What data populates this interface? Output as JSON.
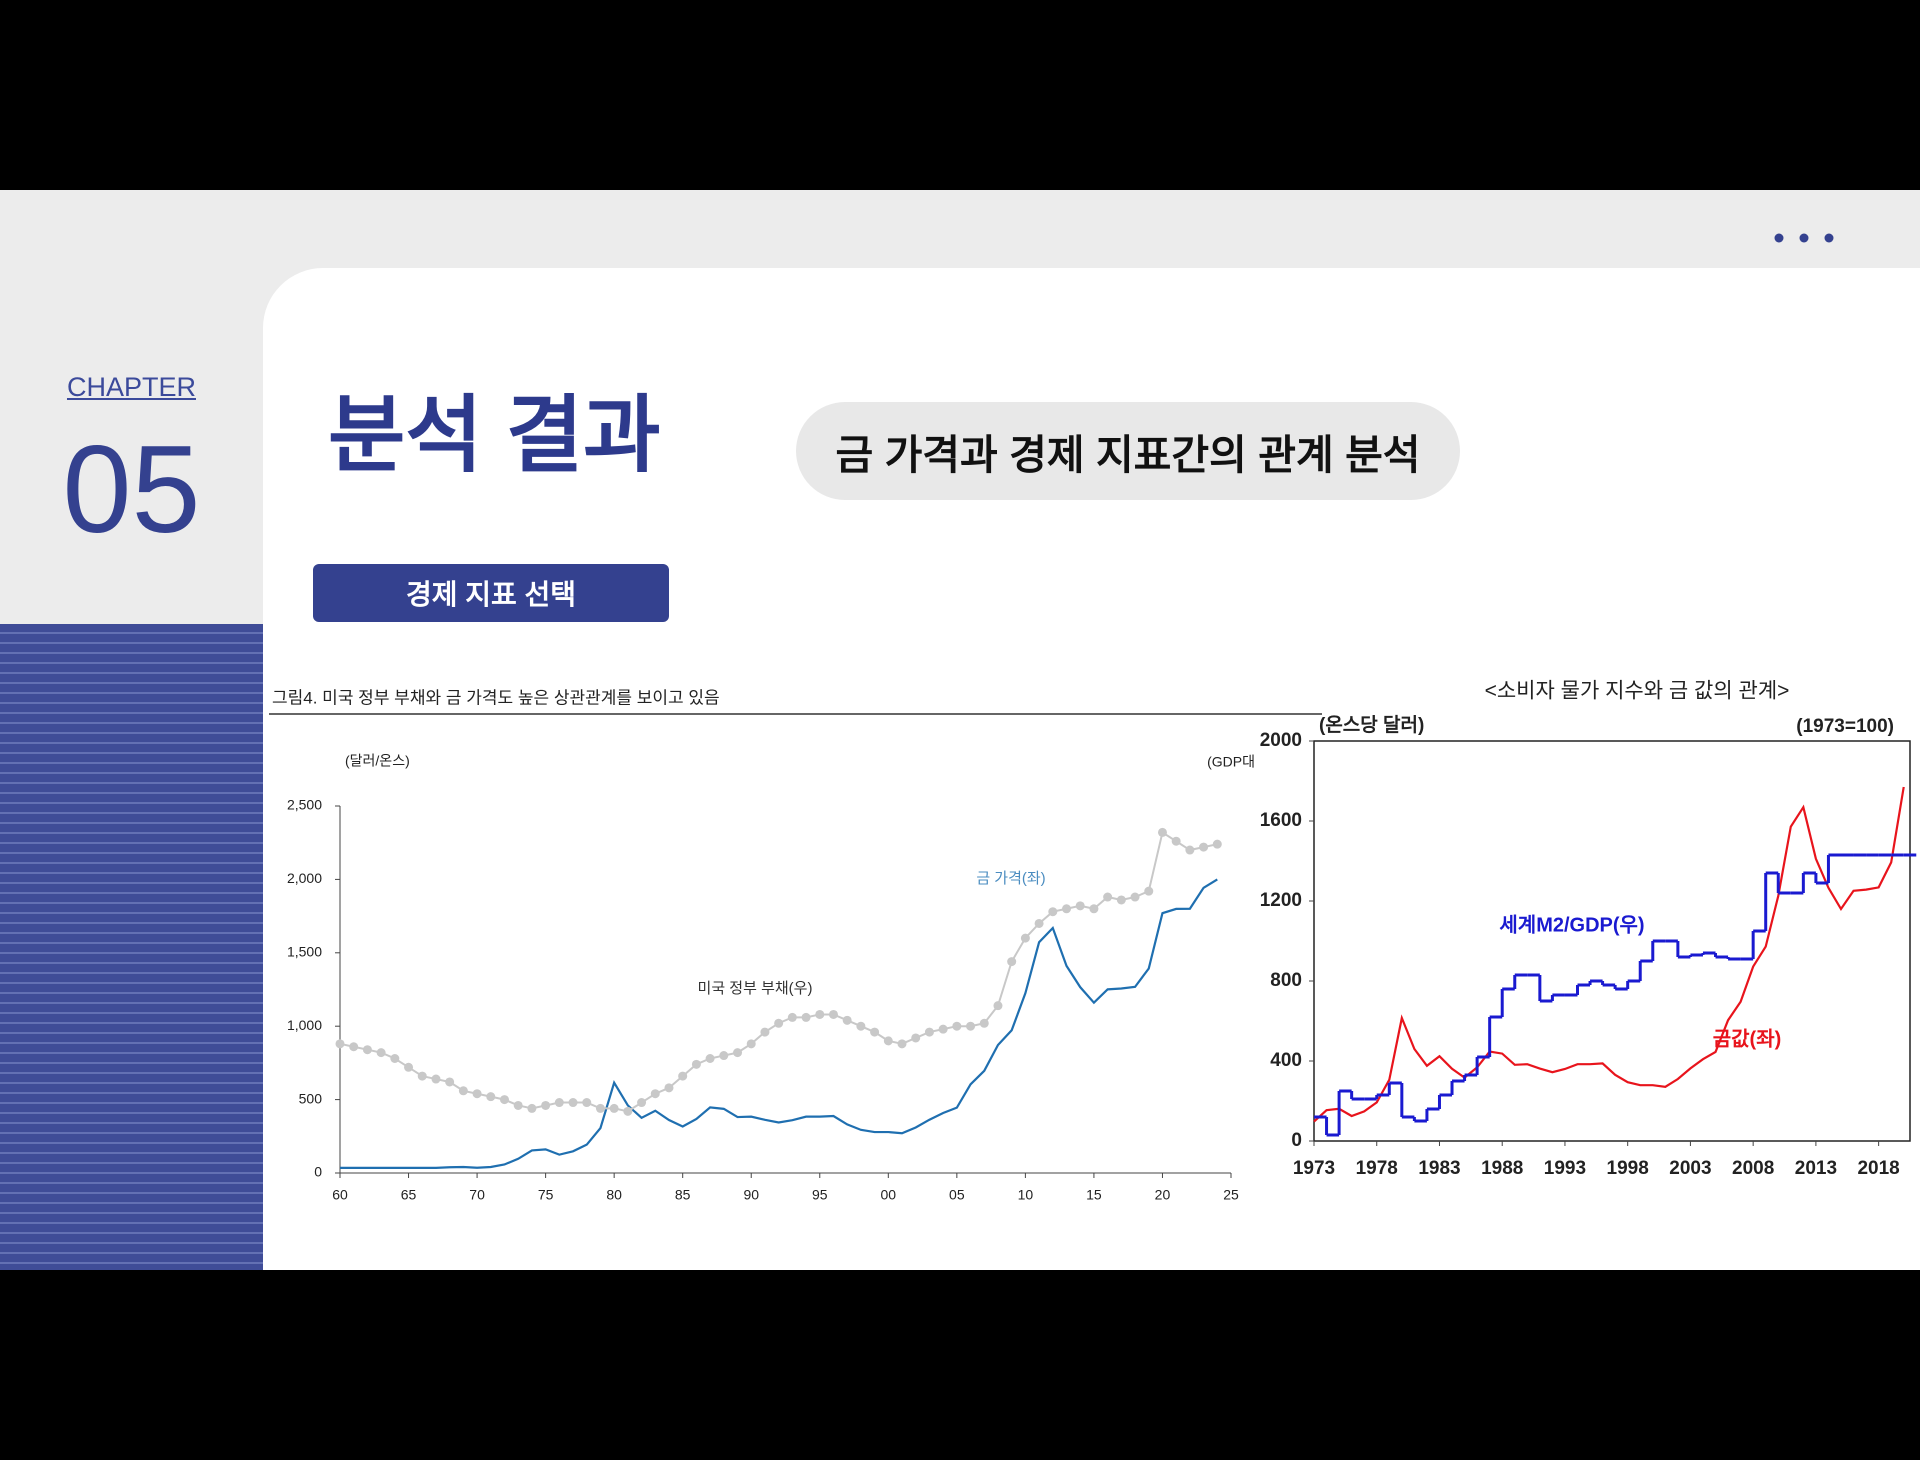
{
  "slide": {
    "chapter_label": "CHAPTER",
    "chapter_number": "05",
    "title": "분석 결과",
    "subtitle": "금 가격과 경제 지표간의 관계 분석",
    "button": "경제 지표 선택"
  },
  "chart_data": [
    {
      "type": "line",
      "title": "그림4.  미국 정부 부채와 금 가격도 높은 상관관계를 보이고 있음",
      "y_label": "(달러/온스)",
      "y2_label": "(GDP대",
      "x": [
        1960,
        1961,
        1962,
        1963,
        1964,
        1965,
        1966,
        1967,
        1968,
        1969,
        1970,
        1971,
        1972,
        1973,
        1974,
        1975,
        1976,
        1977,
        1978,
        1979,
        1980,
        1981,
        1982,
        1983,
        1984,
        1985,
        1986,
        1987,
        1988,
        1989,
        1990,
        1991,
        1992,
        1993,
        1994,
        1995,
        1996,
        1997,
        1998,
        1999,
        2000,
        2001,
        2002,
        2003,
        2004,
        2005,
        2006,
        2007,
        2008,
        2009,
        2010,
        2011,
        2012,
        2013,
        2014,
        2015,
        2016,
        2017,
        2018,
        2019,
        2020,
        2021,
        2022,
        2023,
        2024
      ],
      "series": [
        {
          "name": "금 가격(좌)",
          "color": "#1f6fb0",
          "values": [
            35,
            35,
            35,
            35,
            35,
            35,
            35,
            35,
            39,
            41,
            36,
            41,
            58,
            97,
            154,
            161,
            125,
            148,
            193,
            306,
            615,
            460,
            376,
            424,
            361,
            317,
            368,
            447,
            437,
            381,
            384,
            362,
            344,
            360,
            384,
            384,
            388,
            331,
            294,
            279,
            279,
            271,
            310,
            363,
            409,
            445,
            604,
            696,
            872,
            972,
            1225,
            1572,
            1669,
            1411,
            1266,
            1160,
            1251,
            1257,
            1268,
            1393,
            1770,
            1799,
            1800,
            1943,
            2000
          ]
        },
        {
          "name": "미국 정부 부채(우)",
          "color": "#c8c8c8",
          "axis": "y2",
          "marker": "circle",
          "values": [
            54,
            53,
            52,
            51,
            49,
            46,
            43,
            42,
            41,
            38,
            37,
            36,
            35,
            33,
            32,
            33,
            34,
            34,
            34,
            32,
            32,
            31,
            34,
            37,
            39,
            43,
            47,
            49,
            50,
            51,
            54,
            58,
            61,
            63,
            63,
            64,
            64,
            62,
            60,
            58,
            55,
            54,
            56,
            58,
            59,
            60,
            60,
            61,
            67,
            82,
            90,
            95,
            99,
            100,
            101,
            100,
            104,
            103,
            104,
            106,
            126,
            123,
            120,
            121,
            122
          ]
        }
      ],
      "xlim": [
        1960,
        2025
      ],
      "xticks": [
        {
          "value": 1960,
          "label": "60"
        },
        {
          "value": 1965,
          "label": "65"
        },
        {
          "value": 1970,
          "label": "70"
        },
        {
          "value": 1975,
          "label": "75"
        },
        {
          "value": 1980,
          "label": "80"
        },
        {
          "value": 1985,
          "label": "85"
        },
        {
          "value": 1990,
          "label": "90"
        },
        {
          "value": 1995,
          "label": "95"
        },
        {
          "value": 2000,
          "label": "00"
        },
        {
          "value": 2005,
          "label": "05"
        },
        {
          "value": 2010,
          "label": "10"
        },
        {
          "value": 2015,
          "label": "15"
        },
        {
          "value": 2020,
          "label": "20"
        },
        {
          "value": 2025,
          "label": "25"
        }
      ],
      "ylim": [
        0,
        2500
      ],
      "yticks": [
        0,
        500,
        {
          "value": 1000,
          "label": "1,000"
        },
        {
          "value": 1500,
          "label": "1,500"
        },
        {
          "value": 2000,
          "label": "2,000"
        },
        {
          "value": 2500,
          "label": "2,500"
        }
      ],
      "y2lim": [
        10,
        135
      ]
    },
    {
      "type": "line",
      "title": "<소비자 물가 지수와 금 값의 관계>",
      "y_label": "(온스당 달러)",
      "y2_label": "(1973=100)",
      "x": [
        1973,
        1974,
        1975,
        1976,
        1977,
        1978,
        1979,
        1980,
        1981,
        1982,
        1983,
        1984,
        1985,
        1986,
        1987,
        1988,
        1989,
        1990,
        1991,
        1992,
        1993,
        1994,
        1995,
        1996,
        1997,
        1998,
        1999,
        2000,
        2001,
        2002,
        2003,
        2004,
        2005,
        2006,
        2007,
        2008,
        2009,
        2010,
        2011,
        2012,
        2013,
        2014,
        2015,
        2016,
        2017,
        2018,
        2019,
        2020
      ],
      "series": [
        {
          "name": "금값(좌)",
          "color": "#e8141c",
          "values": [
            97,
            154,
            161,
            125,
            148,
            193,
            306,
            615,
            460,
            376,
            424,
            361,
            317,
            368,
            447,
            437,
            381,
            384,
            362,
            344,
            360,
            384,
            384,
            388,
            331,
            294,
            279,
            279,
            271,
            310,
            363,
            409,
            445,
            604,
            696,
            872,
            972,
            1225,
            1572,
            1669,
            1411,
            1266,
            1160,
            1251,
            1257,
            1268,
            1393,
            1770
          ]
        },
        {
          "name": "세계M2/GDP(우)",
          "color": "#1a1ad0",
          "axis": "y2",
          "step": true,
          "values": [
            120,
            30,
            250,
            210,
            210,
            230,
            290,
            120,
            100,
            160,
            230,
            300,
            330,
            420,
            620,
            760,
            830,
            830,
            700,
            730,
            730,
            780,
            800,
            780,
            760,
            800,
            900,
            1000,
            1000,
            920,
            930,
            940,
            920,
            910,
            910,
            1050,
            1340,
            1240,
            1240,
            1340,
            1290,
            1430,
            1430,
            1430,
            1430,
            1430,
            1430,
            1430
          ]
        }
      ],
      "xlim": [
        1973,
        2020.5
      ],
      "xticks": [
        1973,
        1978,
        1983,
        1988,
        1993,
        1998,
        2003,
        2008,
        2013,
        2018
      ],
      "ylim": [
        0,
        2000
      ],
      "yticks": [
        0,
        400,
        800,
        1200,
        1600,
        2000
      ],
      "y2lim": [
        0,
        2000
      ]
    }
  ]
}
